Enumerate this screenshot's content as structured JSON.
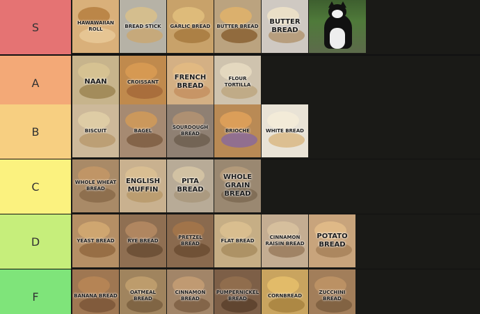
{
  "tiers": [
    {
      "key": "S",
      "label": "S",
      "color": "#e57373",
      "items": [
        {
          "name": "hawaiian-roll",
          "text": "HAWAWAIIAN ROLL",
          "bg": "#d9b07a",
          "c1": "#b57f40",
          "c2": "#e8c998"
        },
        {
          "name": "bread-stick",
          "text": "BREAD STICK",
          "bg": "#b6b2a6",
          "c1": "#d9c08a",
          "c2": "#c9a773"
        },
        {
          "name": "garlic-bread",
          "text": "GARLIC BREAD",
          "bg": "#c8a26a",
          "c1": "#e2c07c",
          "c2": "#a77a3e"
        },
        {
          "name": "butter-bread-1",
          "text": "BUTTER BREAD",
          "bg": "#bba37f",
          "c1": "#e0b36a",
          "c2": "#8a6232"
        },
        {
          "name": "butter-bread-2",
          "text": "BUTTER BREAD",
          "bg": "#cfc9c2",
          "c1": "#efe3c8",
          "c2": "#b39672",
          "big": true
        },
        {
          "name": "cat-photo",
          "text": "",
          "cat": true
        }
      ]
    },
    {
      "key": "A",
      "label": "A",
      "color": "#f3a977",
      "items": [
        {
          "name": "naan",
          "text": "NAAN",
          "bg": "#c7b48c",
          "c1": "#d8c493",
          "c2": "#9c8552",
          "big": true
        },
        {
          "name": "croissant",
          "text": "CROISSANT",
          "bg": "#c08a4d",
          "c1": "#d99b54",
          "c2": "#a5683a"
        },
        {
          "name": "french-bread",
          "text": "FRENCH BREAD",
          "bg": "#d4b084",
          "c1": "#e3bb81",
          "c2": "#c49160",
          "big": true
        },
        {
          "name": "flour-tortilla",
          "text": "FLOUR TORTILLA",
          "bg": "#cfc3ae",
          "c1": "#e8dcc2",
          "c2": "#bda780"
        }
      ]
    },
    {
      "key": "B",
      "label": "B",
      "color": "#f7cf81",
      "items": [
        {
          "name": "biscuit",
          "text": "BISCUIT",
          "bg": "#cdb99a",
          "c1": "#e1cfa7",
          "c2": "#b89a6e"
        },
        {
          "name": "bagel",
          "text": "BAGEL",
          "bg": "#a68a72",
          "c1": "#d19a58",
          "c2": "#7e5d42"
        },
        {
          "name": "sourdough-bread",
          "text": "SOURDOUGH BREAD",
          "bg": "#8f8073",
          "c1": "#b49372",
          "c2": "#6f5f50"
        },
        {
          "name": "brioche",
          "text": "BRIOCHE",
          "bg": "#b98a55",
          "c1": "#e0a15a",
          "c2": "#8a6a9a"
        },
        {
          "name": "white-bread",
          "text": "WHITE BREAD",
          "bg": "#e9e3d6",
          "c1": "#f4ecd8",
          "c2": "#d9b985"
        }
      ]
    },
    {
      "key": "C",
      "label": "C",
      "color": "#fbf27f",
      "items": [
        {
          "name": "whole-wheat-bread",
          "text": "WHOLE WHEAT BREAD",
          "bg": "#a98a67",
          "c1": "#c49766",
          "c2": "#8a6a4a"
        },
        {
          "name": "english-muffin",
          "text": "ENGLISH MUFFIN",
          "bg": "#c9b18f",
          "c1": "#dcc193",
          "c2": "#b89a6b",
          "big": true
        },
        {
          "name": "pita-bread",
          "text": "PITA BREAD",
          "bg": "#b8ab97",
          "c1": "#d6c5a4",
          "c2": "#a8977b",
          "big": true
        },
        {
          "name": "whole-grain-bread",
          "text": "WHOLE GRAIN BREAD",
          "bg": "#9a8871",
          "c1": "#b79d7b",
          "c2": "#7d6a52",
          "big": true
        }
      ]
    },
    {
      "key": "D",
      "label": "D",
      "color": "#c6ee7b",
      "items": [
        {
          "name": "yeast-bread",
          "text": "YEAST BREAD",
          "bg": "#b58f65",
          "c1": "#d4aa72",
          "c2": "#92693f"
        },
        {
          "name": "rye-bread",
          "text": "RYE BREAD",
          "bg": "#8f6f52",
          "c1": "#b68b63",
          "c2": "#6a4d34"
        },
        {
          "name": "pretzel-bread",
          "text": "PRETZEL BREAD",
          "bg": "#8a6a4e",
          "c1": "#a5764a",
          "c2": "#6b4c32"
        },
        {
          "name": "flat-bread",
          "text": "FLAT BREAD",
          "bg": "#c6ae85",
          "c1": "#dcc190",
          "c2": "#a88d5f"
        },
        {
          "name": "cinnamon-raisin-bread",
          "text": "CINNAMON RAISIN BREAD",
          "bg": "#c4ad92",
          "c1": "#d9c29f",
          "c2": "#9a7b5d"
        },
        {
          "name": "potato-bread",
          "text": "POTATO BREAD",
          "bg": "#c8a47c",
          "c1": "#e3bd8a",
          "c2": "#a7835a",
          "big": true
        }
      ]
    },
    {
      "key": "F",
      "label": "F",
      "color": "#7fe47a",
      "items": [
        {
          "name": "banana-bread",
          "text": "BANANA BREAD",
          "bg": "#9f7752",
          "c1": "#b88656",
          "c2": "#7b5638"
        },
        {
          "name": "oatmeal-bread",
          "text": "OATMEAL BREAD",
          "bg": "#a0845e",
          "c1": "#c2a06f",
          "c2": "#7a5f3f"
        },
        {
          "name": "cinnamon-bread",
          "text": "CINNAMON BREAD",
          "bg": "#a28568",
          "c1": "#c69e74",
          "c2": "#7e5f44"
        },
        {
          "name": "pumpernickel-bread",
          "text": "PUMPERNICKEL BREAD",
          "bg": "#7d5f47",
          "c1": "#93704f",
          "c2": "#5b412d"
        },
        {
          "name": "cornbread",
          "text": "CORNBREAD",
          "bg": "#c9a45f",
          "c1": "#e6bf6b",
          "c2": "#a8843f"
        },
        {
          "name": "zucchini-bread",
          "text": "ZUCCHINI BREAD",
          "bg": "#a27e5a",
          "c1": "#bf9466",
          "c2": "#7d5e3f"
        }
      ]
    }
  ]
}
